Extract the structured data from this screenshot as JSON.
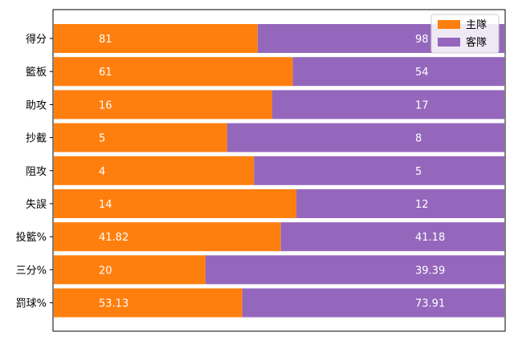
{
  "chart_data": {
    "type": "bar",
    "orientation": "horizontal-stacked-percent",
    "categories": [
      "得分",
      "籃板",
      "助攻",
      "抄截",
      "阻攻",
      "失誤",
      "投籃%",
      "三分%",
      "罰球%"
    ],
    "series": [
      {
        "name": "主隊",
        "color": "#ff7f0e",
        "values": [
          81,
          61,
          16,
          5,
          4,
          14,
          41.82,
          20,
          53.13
        ]
      },
      {
        "name": "客隊",
        "color": "#9467bd",
        "values": [
          98,
          54,
          17,
          8,
          5,
          12,
          41.18,
          39.39,
          73.91
        ]
      }
    ],
    "title": "",
    "xlabel": "",
    "ylabel": "",
    "grid": false,
    "legend_position": "top-right"
  }
}
